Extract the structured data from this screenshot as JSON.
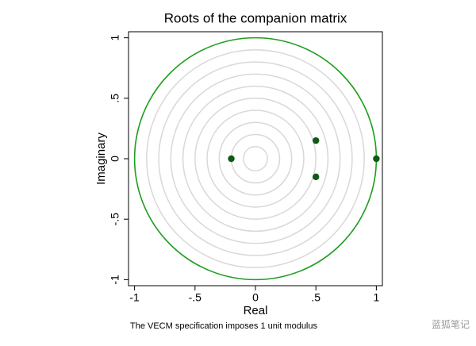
{
  "chart_data": {
    "type": "scatter",
    "title": "Roots of the companion matrix",
    "x_label": "Real",
    "y_label": "Imaginary",
    "note": "The VECM specification imposes 1 unit modulus",
    "watermark": "蓝狐笔记",
    "x": [
      -0.2,
      0.5,
      0.5,
      1
    ],
    "values": [
      0,
      0.15,
      -0.15,
      0
    ],
    "color": "#0f5a14",
    "circle_color": "#1e9e1e",
    "xlim": [
      -1.05,
      1.05
    ],
    "ylim": [
      -1.05,
      1.05
    ],
    "xticks": [
      -1,
      {
        "value": -0.5,
        "label": "-.5"
      },
      0,
      {
        "value": 0.5,
        "label": ".5"
      },
      1
    ],
    "yticks": [
      -1,
      {
        "value": -0.5,
        "label": "-.5"
      },
      0,
      {
        "value": 0.5,
        "label": ".5"
      },
      1
    ]
  }
}
